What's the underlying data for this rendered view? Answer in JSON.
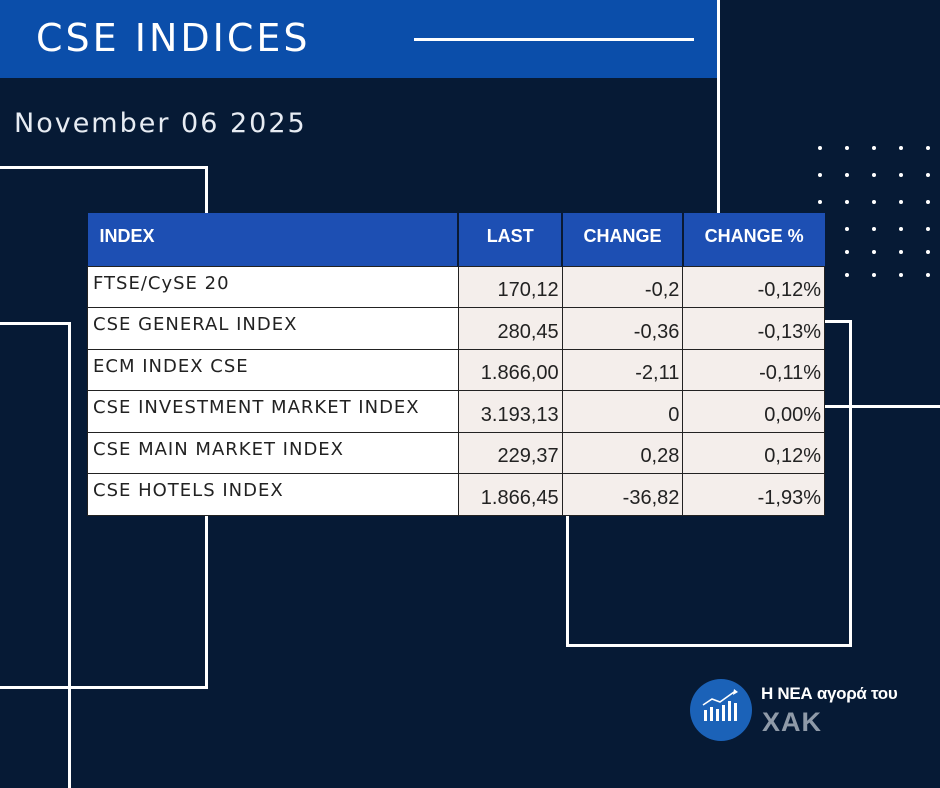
{
  "header": {
    "title": "CSE INDICES"
  },
  "date": "November 06 2025",
  "table": {
    "columns": [
      "INDEX",
      "LAST",
      "CHANGE",
      "CHANGE %"
    ],
    "rows": [
      {
        "name": "FTSE/CySE 20",
        "last": "170,12",
        "change": "-0,2",
        "change_pct": "-0,12%",
        "trend": "neg"
      },
      {
        "name": "CSE GENERAL INDEX",
        "last": "280,45",
        "change": "-0,36",
        "change_pct": "-0,13%",
        "trend": "neg"
      },
      {
        "name": "ECM INDEX CSE",
        "last": "1.866,00",
        "change": "-2,11",
        "change_pct": "-0,11%",
        "trend": "neg"
      },
      {
        "name": "CSE INVESTMENT MARKET INDEX",
        "last": "3.193,13",
        "change": "0",
        "change_pct": "0,00%",
        "trend": "pos"
      },
      {
        "name": "CSE MAIN MARKET INDEX",
        "last": "229,37",
        "change": "0,28",
        "change_pct": "0,12%",
        "trend": "pos"
      },
      {
        "name": "CSE HOTELS INDEX",
        "last": "1.866,45",
        "change": "-36,82",
        "change_pct": "-1,93%",
        "trend": "neg"
      }
    ]
  },
  "logo": {
    "line1": "Η ΝΕΑ αγορά του",
    "line2": "ΧΑΚ",
    "icon": "bar-chart-icon"
  },
  "colors": {
    "background": "#061a35",
    "banner": "#0b4eaa",
    "table_header": "#1d4fb3",
    "negative": "#e3141a",
    "positive": "#4f9a2f",
    "logo_circle": "#1b62b8"
  }
}
